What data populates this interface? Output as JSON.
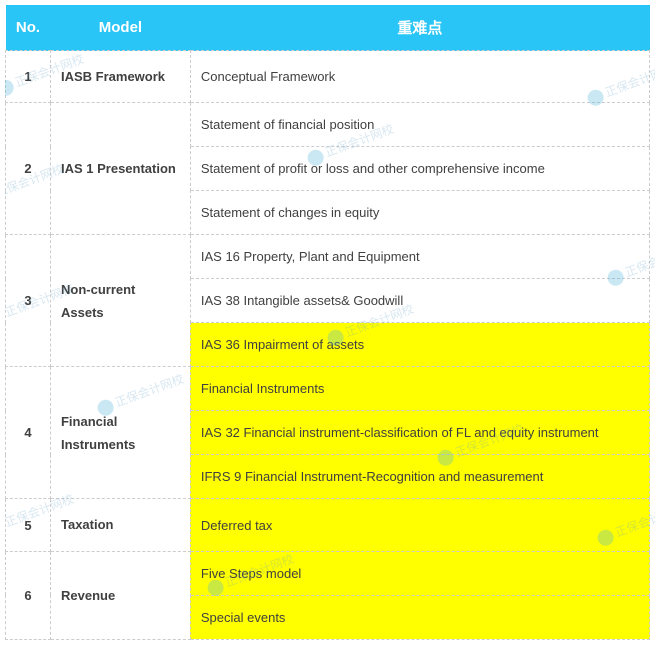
{
  "header": {
    "no": "No.",
    "model": "Model",
    "points": "重难点"
  },
  "rows": [
    {
      "no": "1",
      "model": "IASB Framework",
      "points": [
        {
          "text": "Conceptual Framework",
          "highlight": false
        }
      ]
    },
    {
      "no": "2",
      "model": "IAS 1 Presentation",
      "points": [
        {
          "text": "Statement of financial position",
          "highlight": false
        },
        {
          "text": "Statement of profit or loss and other comprehensive income",
          "highlight": false
        },
        {
          "text": "Statement of changes in equity",
          "highlight": false
        }
      ]
    },
    {
      "no": "3",
      "model": "Non-current Assets",
      "points": [
        {
          "text": "IAS 16 Property, Plant and Equipment",
          "highlight": false
        },
        {
          "text": "IAS 38 Intangible assets& Goodwill",
          "highlight": false
        },
        {
          "text": "IAS 36 Impairment of assets",
          "highlight": true
        }
      ]
    },
    {
      "no": "4",
      "model": "Financial Instruments",
      "points": [
        {
          "text": "Financial Instruments",
          "highlight": true
        },
        {
          "text": "IAS 32 Financial instrument-classification of FL and equity instrument",
          "highlight": true
        },
        {
          "text": "IFRS 9 Financial Instrument-Recognition and measurement",
          "highlight": true
        }
      ]
    },
    {
      "no": "5",
      "model": "Taxation",
      "points": [
        {
          "text": "Deferred tax",
          "highlight": true
        }
      ]
    },
    {
      "no": "6",
      "model": "Revenue",
      "points": [
        {
          "text": "Five Steps model",
          "highlight": true
        },
        {
          "text": "Special events",
          "highlight": true
        }
      ]
    }
  ],
  "colors": {
    "header_bg": "#29c5f6",
    "header_text": "#ffffff",
    "border": "#cccccc",
    "text": "#404040",
    "highlight_bg": "#ffff00"
  },
  "watermark_text": "正保会计网校"
}
